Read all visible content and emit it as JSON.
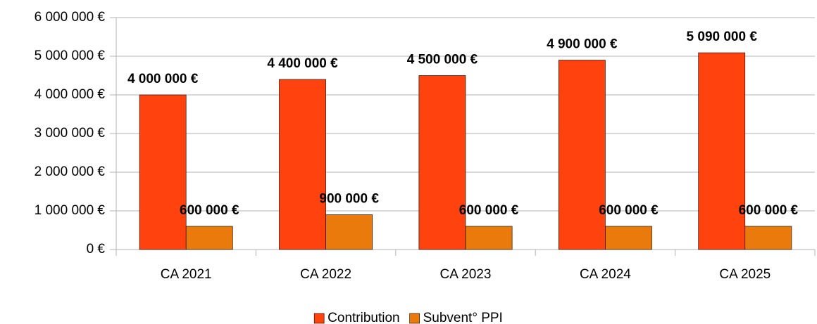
{
  "chart_data": {
    "type": "bar",
    "categories": [
      "CA 2021",
      "CA 2022",
      "CA 2023",
      "CA 2024",
      "CA 2025"
    ],
    "series": [
      {
        "name": "Contribution",
        "color": "#ff420e",
        "values": [
          4000000,
          4400000,
          4500000,
          4900000,
          5090000
        ],
        "value_labels": [
          "4 000 000 €",
          "4 400 000 €",
          "4 500 000 €",
          "4 900 000 €",
          "5 090 000 €"
        ]
      },
      {
        "name": "Subvent° PPI",
        "color": "#ea7a0b",
        "values": [
          600000,
          900000,
          600000,
          600000,
          600000
        ],
        "value_labels": [
          "600 000 €",
          "900 000 €",
          "600 000 €",
          "600 000 €",
          "600 000 €"
        ]
      }
    ],
    "ylim": [
      0,
      6000000
    ],
    "yticks": [
      {
        "value": 0,
        "label": "0 €"
      },
      {
        "value": 1000000,
        "label": "1 000 000 €"
      },
      {
        "value": 2000000,
        "label": "2 000 000 €"
      },
      {
        "value": 3000000,
        "label": "3 000 000 €"
      },
      {
        "value": 4000000,
        "label": "4 000 000 €"
      },
      {
        "value": 5000000,
        "label": "5 000 000 €"
      },
      {
        "value": 6000000,
        "label": "6 000 000 €"
      }
    ],
    "grid": true,
    "legend": "bottom"
  }
}
